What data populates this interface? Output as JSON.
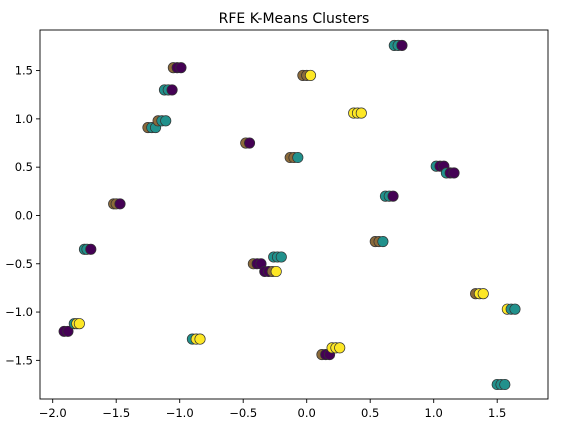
{
  "chart_data": {
    "type": "scatter",
    "title": "RFE K-Means Clusters",
    "xlabel": "",
    "ylabel": "",
    "xlim": [
      -2.1,
      1.9
    ],
    "ylim": [
      -1.9,
      1.92
    ],
    "x_ticks": [
      -2.0,
      -1.5,
      -1.0,
      -0.5,
      0.0,
      0.5,
      1.0,
      1.5
    ],
    "x_tick_labels": [
      "−2.0",
      "−1.5",
      "−1.0",
      "−0.5",
      "0.0",
      "0.5",
      "1.0",
      "1.5"
    ],
    "y_ticks": [
      -1.5,
      -1.0,
      -0.5,
      0.0,
      0.5,
      1.0,
      1.5
    ],
    "y_tick_labels": [
      "−1.5",
      "−1.0",
      "−0.5",
      "0.0",
      "0.5",
      "1.0",
      "1.5"
    ],
    "grid": false,
    "legend": "none",
    "colors": {
      "cluster_0": "#440154",
      "cluster_1": "#21918c",
      "cluster_2": "#fde725",
      "blend": "#8b6a3a",
      "edge": "#333333"
    },
    "points": [
      {
        "x": -1.91,
        "y": -1.2,
        "cluster": 0
      },
      {
        "x": -1.88,
        "y": -1.2,
        "cluster": 0
      },
      {
        "x": -1.83,
        "y": -1.12,
        "cluster": 1
      },
      {
        "x": -1.81,
        "y": -1.12,
        "cluster": 2
      },
      {
        "x": -1.79,
        "y": -1.12,
        "cluster": 2
      },
      {
        "x": -1.75,
        "y": -0.35,
        "cluster": 1
      },
      {
        "x": -1.73,
        "y": -0.35,
        "cluster": 1
      },
      {
        "x": -1.7,
        "y": -0.35,
        "cluster": 0
      },
      {
        "x": -1.52,
        "y": 0.12,
        "cluster": 3
      },
      {
        "x": -1.5,
        "y": 0.12,
        "cluster": 3
      },
      {
        "x": -1.47,
        "y": 0.12,
        "cluster": 0
      },
      {
        "x": -1.25,
        "y": 0.91,
        "cluster": 3
      },
      {
        "x": -1.22,
        "y": 0.91,
        "cluster": 1
      },
      {
        "x": -1.19,
        "y": 0.91,
        "cluster": 1
      },
      {
        "x": -1.17,
        "y": 0.98,
        "cluster": 3
      },
      {
        "x": -1.14,
        "y": 0.98,
        "cluster": 1
      },
      {
        "x": -1.11,
        "y": 0.98,
        "cluster": 1
      },
      {
        "x": -1.12,
        "y": 1.3,
        "cluster": 1
      },
      {
        "x": -1.09,
        "y": 1.3,
        "cluster": 1
      },
      {
        "x": -1.06,
        "y": 1.3,
        "cluster": 0
      },
      {
        "x": -1.05,
        "y": 1.53,
        "cluster": 3
      },
      {
        "x": -1.02,
        "y": 1.53,
        "cluster": 0
      },
      {
        "x": -0.99,
        "y": 1.53,
        "cluster": 0
      },
      {
        "x": -0.9,
        "y": -1.28,
        "cluster": 1
      },
      {
        "x": -0.87,
        "y": -1.28,
        "cluster": 2
      },
      {
        "x": -0.84,
        "y": -1.28,
        "cluster": 2
      },
      {
        "x": -0.48,
        "y": 0.75,
        "cluster": 3
      },
      {
        "x": -0.45,
        "y": 0.75,
        "cluster": 0
      },
      {
        "x": -0.42,
        "y": -0.5,
        "cluster": 3
      },
      {
        "x": -0.39,
        "y": -0.5,
        "cluster": 0
      },
      {
        "x": -0.36,
        "y": -0.5,
        "cluster": 0
      },
      {
        "x": -0.33,
        "y": -0.58,
        "cluster": 0
      },
      {
        "x": -0.3,
        "y": -0.58,
        "cluster": 0
      },
      {
        "x": -0.27,
        "y": -0.58,
        "cluster": 3
      },
      {
        "x": -0.24,
        "y": -0.58,
        "cluster": 2
      },
      {
        "x": -0.26,
        "y": -0.43,
        "cluster": 1
      },
      {
        "x": -0.23,
        "y": -0.43,
        "cluster": 1
      },
      {
        "x": -0.2,
        "y": -0.43,
        "cluster": 1
      },
      {
        "x": -0.13,
        "y": 0.6,
        "cluster": 3
      },
      {
        "x": -0.1,
        "y": 0.6,
        "cluster": 3
      },
      {
        "x": -0.07,
        "y": 0.6,
        "cluster": 1
      },
      {
        "x": -0.03,
        "y": 1.45,
        "cluster": 3
      },
      {
        "x": 0.0,
        "y": 1.45,
        "cluster": 3
      },
      {
        "x": 0.03,
        "y": 1.45,
        "cluster": 2
      },
      {
        "x": 0.12,
        "y": -1.44,
        "cluster": 3
      },
      {
        "x": 0.15,
        "y": -1.44,
        "cluster": 0
      },
      {
        "x": 0.18,
        "y": -1.44,
        "cluster": 0
      },
      {
        "x": 0.2,
        "y": -1.37,
        "cluster": 2
      },
      {
        "x": 0.23,
        "y": -1.37,
        "cluster": 2
      },
      {
        "x": 0.26,
        "y": -1.37,
        "cluster": 2
      },
      {
        "x": 0.37,
        "y": 1.06,
        "cluster": 2
      },
      {
        "x": 0.4,
        "y": 1.06,
        "cluster": 2
      },
      {
        "x": 0.43,
        "y": 1.06,
        "cluster": 2
      },
      {
        "x": 0.54,
        "y": -0.27,
        "cluster": 3
      },
      {
        "x": 0.57,
        "y": -0.27,
        "cluster": 3
      },
      {
        "x": 0.6,
        "y": -0.27,
        "cluster": 1
      },
      {
        "x": 0.62,
        "y": 0.2,
        "cluster": 1
      },
      {
        "x": 0.65,
        "y": 0.2,
        "cluster": 1
      },
      {
        "x": 0.68,
        "y": 0.2,
        "cluster": 0
      },
      {
        "x": 0.69,
        "y": 1.76,
        "cluster": 1
      },
      {
        "x": 0.72,
        "y": 1.76,
        "cluster": 1
      },
      {
        "x": 0.75,
        "y": 1.76,
        "cluster": 0
      },
      {
        "x": 1.02,
        "y": 0.51,
        "cluster": 1
      },
      {
        "x": 1.05,
        "y": 0.51,
        "cluster": 0
      },
      {
        "x": 1.08,
        "y": 0.51,
        "cluster": 0
      },
      {
        "x": 1.1,
        "y": 0.44,
        "cluster": 1
      },
      {
        "x": 1.13,
        "y": 0.44,
        "cluster": 0
      },
      {
        "x": 1.16,
        "y": 0.44,
        "cluster": 0
      },
      {
        "x": 1.33,
        "y": -0.81,
        "cluster": 3
      },
      {
        "x": 1.36,
        "y": -0.81,
        "cluster": 2
      },
      {
        "x": 1.39,
        "y": -0.81,
        "cluster": 2
      },
      {
        "x": 1.5,
        "y": -1.75,
        "cluster": 1
      },
      {
        "x": 1.53,
        "y": -1.75,
        "cluster": 1
      },
      {
        "x": 1.56,
        "y": -1.75,
        "cluster": 1
      },
      {
        "x": 1.58,
        "y": -0.97,
        "cluster": 2
      },
      {
        "x": 1.61,
        "y": -0.97,
        "cluster": 1
      },
      {
        "x": 1.64,
        "y": -0.97,
        "cluster": 1
      }
    ]
  }
}
